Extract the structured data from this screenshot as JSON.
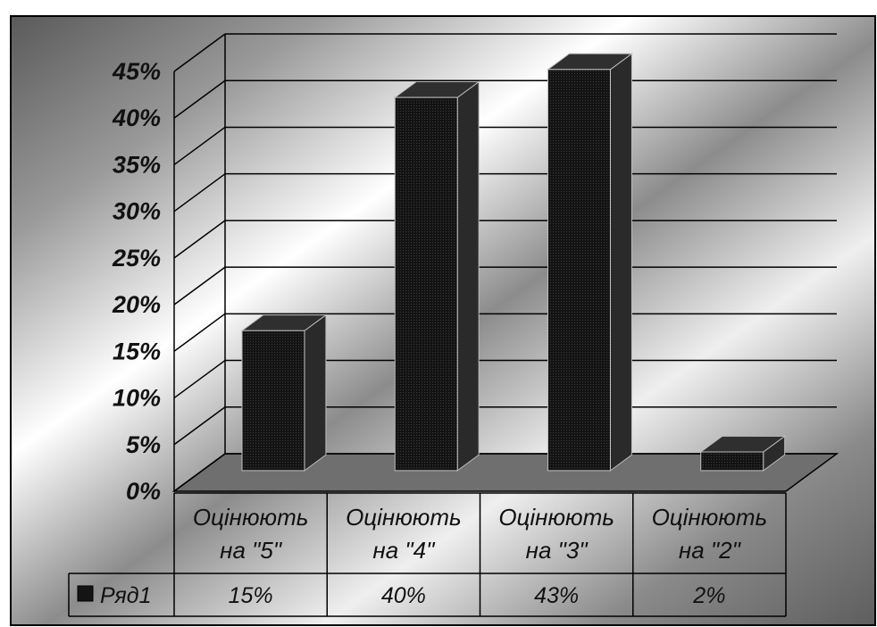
{
  "colors": {
    "bar": "#141414",
    "grid": "#000000",
    "floor": "#6f6f6f",
    "table_line": "#000000"
  },
  "chart_data": {
    "type": "bar",
    "categories": [
      "Оцінюють на \"5\"",
      "Оцінюють на \"4\"",
      "Оцінюють на \"3\"",
      "Оцінюють на \"2\""
    ],
    "category_lines": [
      [
        "Оцінюють",
        "на \"5\""
      ],
      [
        "Оцінюють",
        "на \"4\""
      ],
      [
        "Оцінюють",
        "на \"3\""
      ],
      [
        "Оцінюють",
        "на \"2\""
      ]
    ],
    "series": [
      {
        "name": "Ряд1",
        "values": [
          15,
          40,
          43,
          2
        ],
        "labels": [
          "15%",
          "40%",
          "43%",
          "2%"
        ]
      }
    ],
    "yticks": [
      "0%",
      "5%",
      "10%",
      "15%",
      "20%",
      "25%",
      "30%",
      "35%",
      "40%",
      "45%"
    ],
    "ylim": [
      0,
      45
    ],
    "grid": true,
    "data_table": true,
    "legend": "table-left"
  }
}
